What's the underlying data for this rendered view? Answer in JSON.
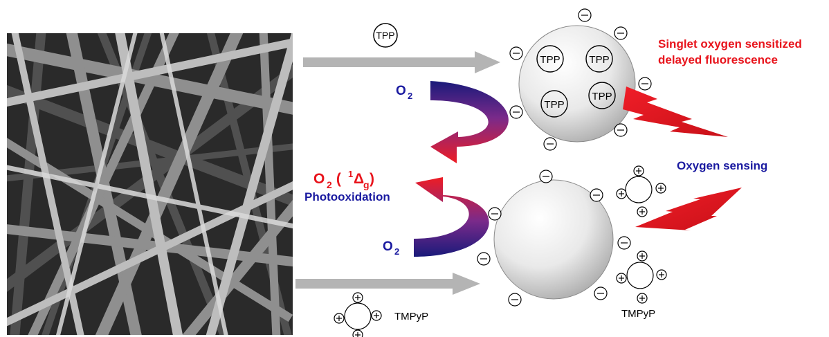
{
  "labels": {
    "tpp_top": "TPP",
    "tpp_on_sphere": [
      "TPP",
      "TPP",
      "TPP",
      "TPP"
    ],
    "o2_upper": "O",
    "o2_upper_sub": "2",
    "singlet_main": "O",
    "singlet_sub": "2",
    "singlet_paren_open": " (",
    "singlet_sup": "1",
    "singlet_delta": "Δ",
    "singlet_delta_sub": "g",
    "singlet_paren_close": ")",
    "photooxidation": "Photooxidation",
    "o2_lower": "O",
    "o2_lower_sub": "2",
    "fluorescence_line1": "Singlet oxygen sensitized",
    "fluorescence_line2": "delayed fluorescence",
    "oxygen_sensing": "Oxygen sensing",
    "tmpyp_bottom_left": "TMPyP",
    "tmpyp_bottom_right": "TMPyP",
    "minus": "−",
    "plus": "+"
  },
  "colors": {
    "red_label": "#e8141c",
    "blue_label": "#1a1aa0",
    "arrow_gray": "#b4b4b4",
    "curve_start": "#1a1a7a",
    "curve_end": "#ee1c24"
  }
}
